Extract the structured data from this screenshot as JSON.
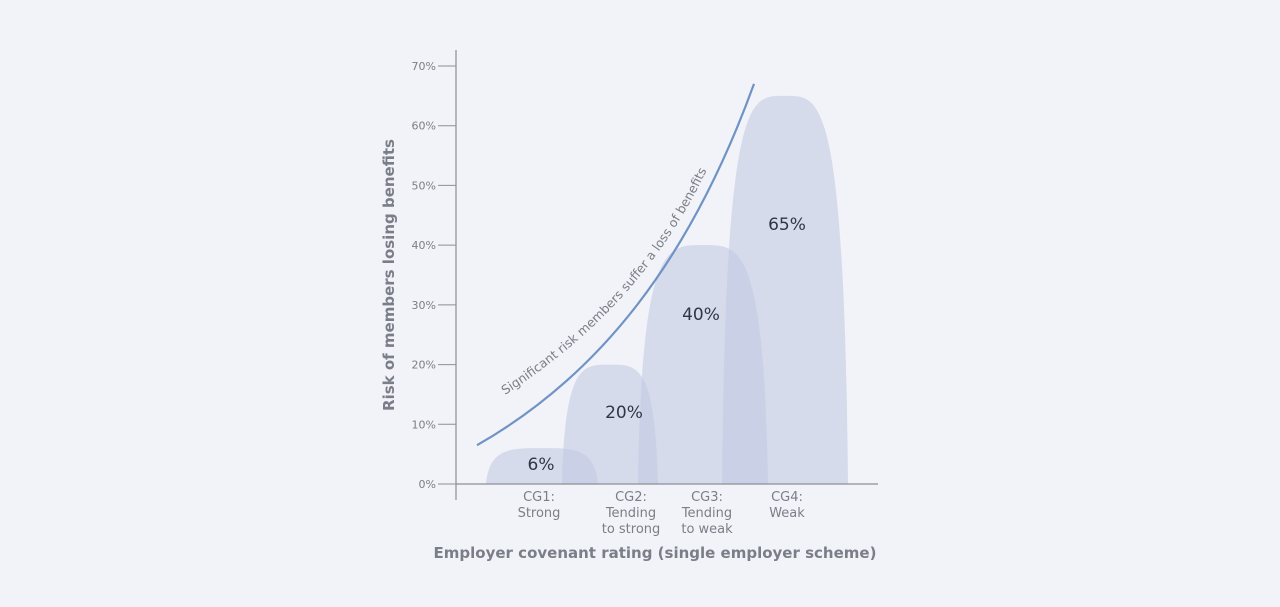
{
  "chart_data": {
    "type": "area",
    "xlabel": "Employer covenant rating (single employer scheme)",
    "ylabel": "Risk of members losing benefits",
    "yticks": [
      "0%",
      "10%",
      "20%",
      "30%",
      "40%",
      "50%",
      "60%",
      "70%"
    ],
    "ylim": [
      0,
      70
    ],
    "categories": [
      [
        "CG1:",
        "Strong"
      ],
      [
        "CG2:",
        "Tending",
        "to strong"
      ],
      [
        "CG3:",
        "Tending",
        "to weak"
      ],
      [
        "CG4:",
        "Weak"
      ]
    ],
    "values": [
      6,
      20,
      40,
      65
    ],
    "value_labels": [
      "6%",
      "20%",
      "40%",
      "65%"
    ],
    "trend_line": {
      "label": "Significant risk members suffer a loss of benefits",
      "start_value": 6.5,
      "end_value": 67
    },
    "grid": false,
    "colors": {
      "background": "#f2f3f8",
      "fill": "#c3cce3",
      "trend": "#6f93c4",
      "axis": "#8c8f99",
      "text": "#7a7e88",
      "value_text": "#2f3747"
    }
  }
}
